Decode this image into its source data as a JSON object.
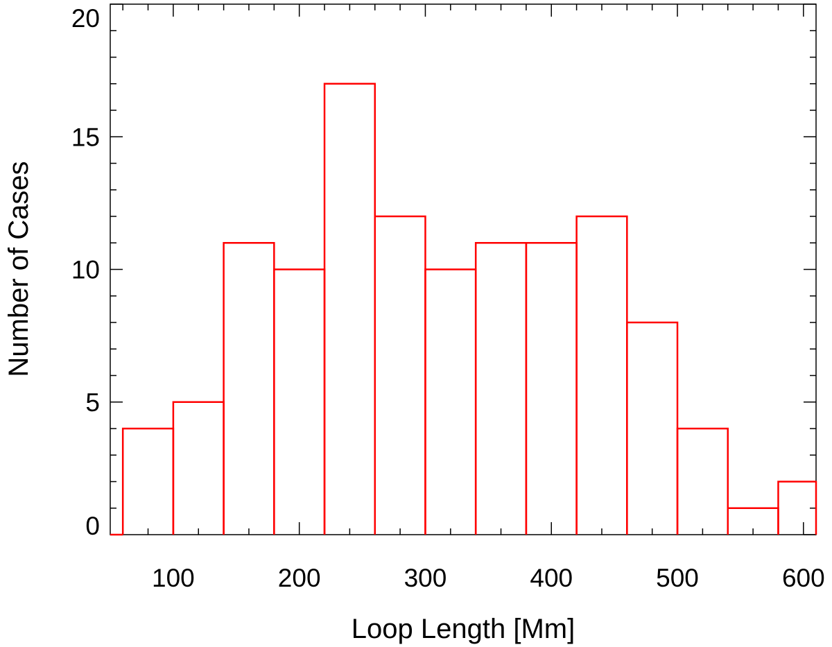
{
  "chart_data": {
    "type": "bar",
    "style": "step-histogram",
    "xlabel": "Loop Length [Mm]",
    "ylabel": "Number of Cases",
    "xlim": [
      50,
      610
    ],
    "ylim": [
      0,
      20
    ],
    "x_ticks": [
      100,
      200,
      300,
      400,
      500,
      600
    ],
    "y_ticks": [
      0,
      5,
      10,
      15,
      20
    ],
    "bin_edges": [
      60,
      100,
      140,
      180,
      220,
      260,
      300,
      340,
      380,
      420,
      460,
      500,
      540,
      580,
      620
    ],
    "values": [
      4,
      5,
      11,
      10,
      17,
      12,
      10,
      11,
      11,
      12,
      8,
      4,
      1,
      2
    ],
    "grid": false,
    "line_color": "#ff0000",
    "axis_color": "#000000"
  }
}
